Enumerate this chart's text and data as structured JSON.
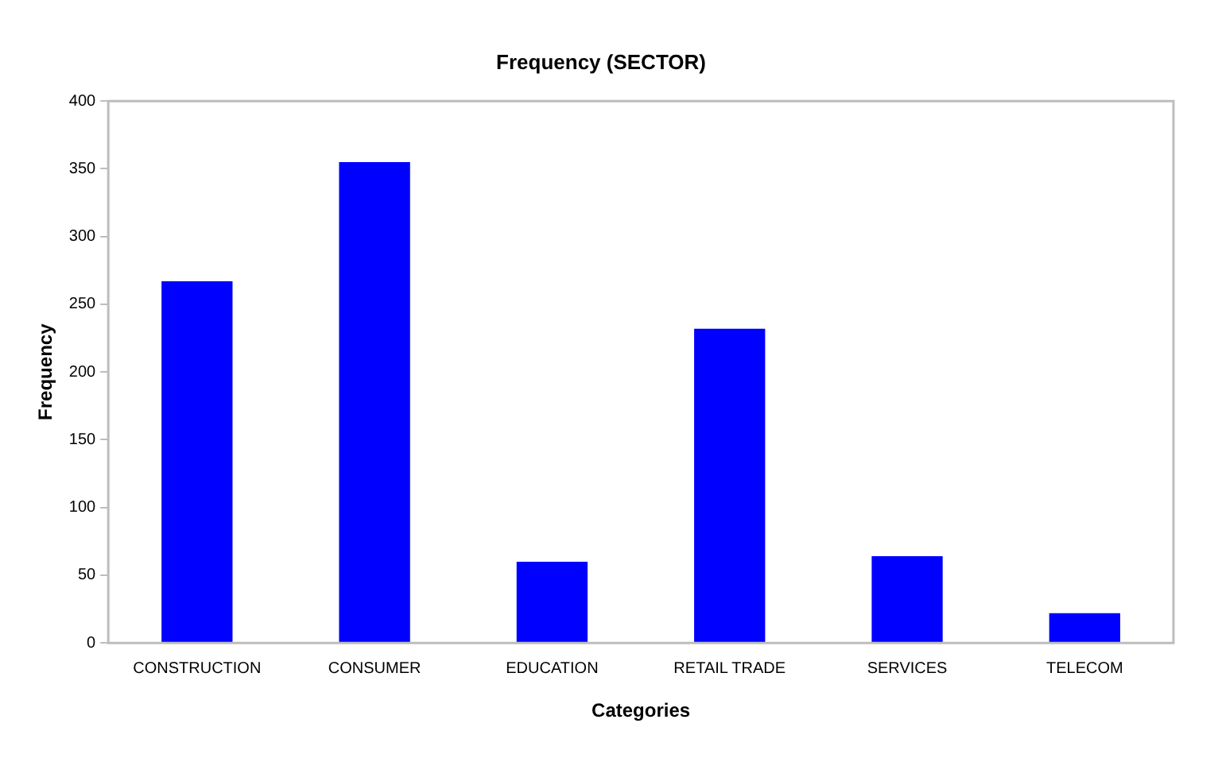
{
  "chart_data": {
    "type": "bar",
    "title": "Frequency (SECTOR)",
    "xlabel": "Categories",
    "ylabel": "Frequency",
    "categories": [
      "CONSTRUCTION",
      "CONSUMER",
      "EDUCATION",
      "RETAIL TRADE",
      "SERVICES",
      "TELECOM"
    ],
    "values": [
      267,
      355,
      60,
      232,
      64,
      22
    ],
    "color": "#0000ff",
    "ylim": [
      0,
      400
    ],
    "yticks": [
      0,
      50,
      100,
      150,
      200,
      250,
      300,
      350,
      400
    ],
    "grid": false,
    "legend": false
  }
}
